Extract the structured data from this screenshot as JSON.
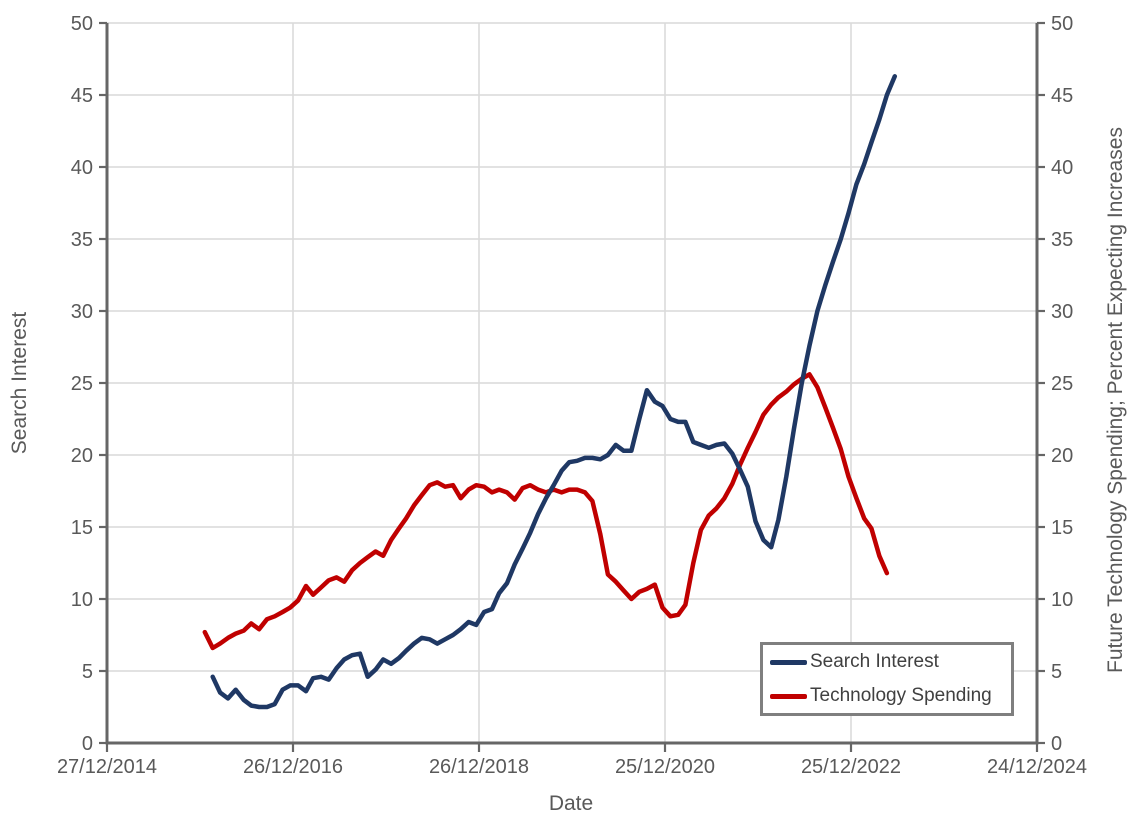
{
  "figure": {
    "background": "#FFFFFF",
    "text_color": "#595959",
    "axis_line_color": "#666666",
    "gridline_color": "#D9D9D9",
    "legend_border_color": "#7F7F7F"
  },
  "chart_data": {
    "type": "line",
    "title": "",
    "xlabel": "Date",
    "ylabel_left": "Search Interest",
    "ylabel_right": "Future Technology Spending; Percent Expecting Increases",
    "x_tick_labels": [
      "27/12/2014",
      "26/12/2016",
      "26/12/2018",
      "25/12/2020",
      "25/12/2022",
      "24/12/2024"
    ],
    "x_range_dates": [
      "2014-12-27",
      "2024-12-24"
    ],
    "y_ticks": [
      0,
      5,
      10,
      15,
      20,
      25,
      30,
      35,
      40,
      45,
      50
    ],
    "ylim": [
      0,
      50
    ],
    "y2lim": [
      0,
      50
    ],
    "grid": true,
    "legend_position": "inside-bottom-right",
    "series": [
      {
        "name": "Technology Spending",
        "axis": "right",
        "color": "#C00000",
        "points": [
          [
            "2016-01",
            7.7
          ],
          [
            "2016-02",
            6.6
          ],
          [
            "2016-03",
            6.9
          ],
          [
            "2016-04",
            7.3
          ],
          [
            "2016-05",
            7.6
          ],
          [
            "2016-06",
            7.8
          ],
          [
            "2016-07",
            8.3
          ],
          [
            "2016-08",
            7.9
          ],
          [
            "2016-09",
            8.6
          ],
          [
            "2016-10",
            8.8
          ],
          [
            "2016-11",
            9.1
          ],
          [
            "2016-12",
            9.4
          ],
          [
            "2017-01",
            9.9
          ],
          [
            "2017-02",
            10.9
          ],
          [
            "2017-03",
            10.3
          ],
          [
            "2017-04",
            10.8
          ],
          [
            "2017-05",
            11.3
          ],
          [
            "2017-06",
            11.5
          ],
          [
            "2017-07",
            11.2
          ],
          [
            "2017-08",
            12.0
          ],
          [
            "2017-09",
            12.5
          ],
          [
            "2017-10",
            12.9
          ],
          [
            "2017-11",
            13.3
          ],
          [
            "2017-12",
            13.0
          ],
          [
            "2018-01",
            14.1
          ],
          [
            "2018-02",
            14.9
          ],
          [
            "2018-03",
            15.6
          ],
          [
            "2018-04",
            16.5
          ],
          [
            "2018-05",
            17.2
          ],
          [
            "2018-06",
            17.9
          ],
          [
            "2018-07",
            18.1
          ],
          [
            "2018-08",
            17.8
          ],
          [
            "2018-09",
            17.9
          ],
          [
            "2018-10",
            17.0
          ],
          [
            "2018-11",
            17.6
          ],
          [
            "2018-12",
            17.9
          ],
          [
            "2019-01",
            17.8
          ],
          [
            "2019-02",
            17.4
          ],
          [
            "2019-03",
            17.6
          ],
          [
            "2019-04",
            17.4
          ],
          [
            "2019-05",
            16.9
          ],
          [
            "2019-06",
            17.7
          ],
          [
            "2019-07",
            17.9
          ],
          [
            "2019-08",
            17.6
          ],
          [
            "2019-09",
            17.4
          ],
          [
            "2019-10",
            17.6
          ],
          [
            "2019-11",
            17.4
          ],
          [
            "2019-12",
            17.6
          ],
          [
            "2020-01",
            17.6
          ],
          [
            "2020-02",
            17.4
          ],
          [
            "2020-03",
            16.8
          ],
          [
            "2020-04",
            14.5
          ],
          [
            "2020-05",
            11.7
          ],
          [
            "2020-06",
            11.2
          ],
          [
            "2020-07",
            10.6
          ],
          [
            "2020-08",
            10.0
          ],
          [
            "2020-09",
            10.5
          ],
          [
            "2020-10",
            10.7
          ],
          [
            "2020-11",
            11.0
          ],
          [
            "2020-12",
            9.4
          ],
          [
            "2021-01",
            8.8
          ],
          [
            "2021-02",
            8.9
          ],
          [
            "2021-03",
            9.6
          ],
          [
            "2021-04",
            12.5
          ],
          [
            "2021-05",
            14.8
          ],
          [
            "2021-06",
            15.8
          ],
          [
            "2021-07",
            16.3
          ],
          [
            "2021-08",
            17.0
          ],
          [
            "2021-09",
            18.0
          ],
          [
            "2021-10",
            19.3
          ],
          [
            "2021-11",
            20.5
          ],
          [
            "2021-12",
            21.6
          ],
          [
            "2022-01",
            22.8
          ],
          [
            "2022-02",
            23.5
          ],
          [
            "2022-03",
            24.0
          ],
          [
            "2022-04",
            24.4
          ],
          [
            "2022-05",
            24.9
          ],
          [
            "2022-06",
            25.3
          ],
          [
            "2022-07",
            25.6
          ],
          [
            "2022-08",
            24.7
          ],
          [
            "2022-09",
            23.3
          ],
          [
            "2022-10",
            21.9
          ],
          [
            "2022-11",
            20.4
          ],
          [
            "2022-12",
            18.5
          ],
          [
            "2023-01",
            17.0
          ],
          [
            "2023-02",
            15.6
          ],
          [
            "2023-03",
            14.9
          ],
          [
            "2023-04",
            13.0
          ],
          [
            "2023-05",
            11.8
          ]
        ]
      },
      {
        "name": "Search Interest",
        "axis": "left",
        "color": "#1F3864",
        "points": [
          [
            "2016-02",
            4.6
          ],
          [
            "2016-03",
            3.5
          ],
          [
            "2016-04",
            3.1
          ],
          [
            "2016-05",
            3.7
          ],
          [
            "2016-06",
            3.0
          ],
          [
            "2016-07",
            2.6
          ],
          [
            "2016-08",
            2.5
          ],
          [
            "2016-09",
            2.5
          ],
          [
            "2016-10",
            2.7
          ],
          [
            "2016-11",
            3.7
          ],
          [
            "2016-12",
            4.0
          ],
          [
            "2017-01",
            4.0
          ],
          [
            "2017-02",
            3.6
          ],
          [
            "2017-03",
            4.5
          ],
          [
            "2017-04",
            4.6
          ],
          [
            "2017-05",
            4.4
          ],
          [
            "2017-06",
            5.2
          ],
          [
            "2017-07",
            5.8
          ],
          [
            "2017-08",
            6.1
          ],
          [
            "2017-09",
            6.2
          ],
          [
            "2017-10",
            4.6
          ],
          [
            "2017-11",
            5.1
          ],
          [
            "2017-12",
            5.8
          ],
          [
            "2018-01",
            5.5
          ],
          [
            "2018-02",
            5.9
          ],
          [
            "2018-03",
            6.4
          ],
          [
            "2018-04",
            6.9
          ],
          [
            "2018-05",
            7.3
          ],
          [
            "2018-06",
            7.2
          ],
          [
            "2018-07",
            6.9
          ],
          [
            "2018-08",
            7.2
          ],
          [
            "2018-09",
            7.5
          ],
          [
            "2018-10",
            7.9
          ],
          [
            "2018-11",
            8.4
          ],
          [
            "2018-12",
            8.2
          ],
          [
            "2019-01",
            9.1
          ],
          [
            "2019-02",
            9.3
          ],
          [
            "2019-03",
            10.4
          ],
          [
            "2019-04",
            11.1
          ],
          [
            "2019-05",
            12.4
          ],
          [
            "2019-06",
            13.5
          ],
          [
            "2019-07",
            14.6
          ],
          [
            "2019-08",
            15.9
          ],
          [
            "2019-09",
            17.0
          ],
          [
            "2019-10",
            17.9
          ],
          [
            "2019-11",
            18.9
          ],
          [
            "2019-12",
            19.5
          ],
          [
            "2020-01",
            19.6
          ],
          [
            "2020-02",
            19.8
          ],
          [
            "2020-03",
            19.8
          ],
          [
            "2020-04",
            19.7
          ],
          [
            "2020-05",
            20.0
          ],
          [
            "2020-06",
            20.7
          ],
          [
            "2020-07",
            20.3
          ],
          [
            "2020-08",
            20.3
          ],
          [
            "2020-09",
            22.5
          ],
          [
            "2020-10",
            24.5
          ],
          [
            "2020-11",
            23.7
          ],
          [
            "2020-12",
            23.4
          ],
          [
            "2021-01",
            22.5
          ],
          [
            "2021-02",
            22.3
          ],
          [
            "2021-03",
            22.3
          ],
          [
            "2021-04",
            20.9
          ],
          [
            "2021-05",
            20.7
          ],
          [
            "2021-06",
            20.5
          ],
          [
            "2021-07",
            20.7
          ],
          [
            "2021-08",
            20.8
          ],
          [
            "2021-09",
            20.1
          ],
          [
            "2021-10",
            19.0
          ],
          [
            "2021-11",
            17.8
          ],
          [
            "2021-12",
            15.4
          ],
          [
            "2022-01",
            14.1
          ],
          [
            "2022-02",
            13.6
          ],
          [
            "2022-03",
            15.5
          ],
          [
            "2022-04",
            18.5
          ],
          [
            "2022-05",
            21.8
          ],
          [
            "2022-06",
            25.0
          ],
          [
            "2022-07",
            27.6
          ],
          [
            "2022-08",
            30.0
          ],
          [
            "2022-09",
            31.8
          ],
          [
            "2022-10",
            33.4
          ],
          [
            "2022-11",
            35.0
          ],
          [
            "2022-12",
            36.8
          ],
          [
            "2023-01",
            38.8
          ],
          [
            "2023-02",
            40.2
          ],
          [
            "2023-03",
            41.7
          ],
          [
            "2023-04",
            43.3
          ],
          [
            "2023-05",
            45.0
          ],
          [
            "2023-06",
            46.3
          ]
        ]
      }
    ]
  }
}
